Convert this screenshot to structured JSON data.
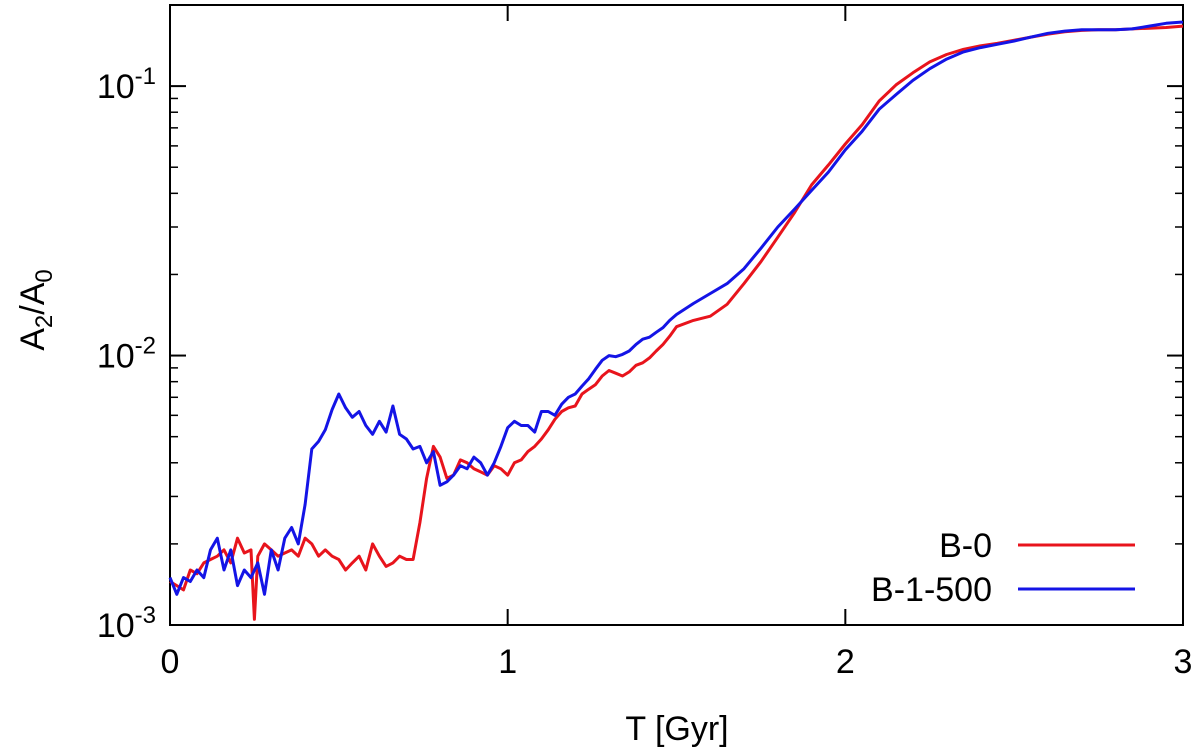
{
  "chart_data": {
    "type": "line",
    "title": "",
    "xlabel": "T [Gyr]",
    "ylabel": {
      "base": "A",
      "sub1": "2",
      "sep": "/A",
      "sub2": "0"
    },
    "xlim": [
      0,
      3
    ],
    "ylim": [
      0.001,
      0.2
    ],
    "yscale": "log",
    "grid": false,
    "legend_position": "bottom-right",
    "x_ticks": [
      {
        "value": 0,
        "label": "0"
      },
      {
        "value": 1,
        "label": "1"
      },
      {
        "value": 2,
        "label": "2"
      },
      {
        "value": 3,
        "label": "3"
      }
    ],
    "y_ticks": [
      {
        "value": 0.001,
        "base": "10",
        "exp": "-3"
      },
      {
        "value": 0.01,
        "base": "10",
        "exp": "-2"
      },
      {
        "value": 0.1,
        "base": "10",
        "exp": "-1"
      }
    ],
    "series": [
      {
        "name": "B-0",
        "color": "#e8141c",
        "x": [
          0.0,
          0.02,
          0.04,
          0.06,
          0.08,
          0.1,
          0.12,
          0.14,
          0.16,
          0.18,
          0.2,
          0.22,
          0.24,
          0.25,
          0.26,
          0.28,
          0.3,
          0.32,
          0.34,
          0.36,
          0.38,
          0.4,
          0.42,
          0.44,
          0.46,
          0.48,
          0.5,
          0.52,
          0.54,
          0.56,
          0.58,
          0.6,
          0.62,
          0.64,
          0.66,
          0.68,
          0.7,
          0.72,
          0.74,
          0.76,
          0.78,
          0.8,
          0.82,
          0.84,
          0.86,
          0.88,
          0.9,
          0.92,
          0.94,
          0.96,
          0.98,
          1.0,
          1.02,
          1.04,
          1.06,
          1.08,
          1.1,
          1.12,
          1.14,
          1.16,
          1.18,
          1.2,
          1.22,
          1.24,
          1.26,
          1.28,
          1.3,
          1.32,
          1.34,
          1.36,
          1.38,
          1.4,
          1.42,
          1.44,
          1.46,
          1.48,
          1.5,
          1.55,
          1.6,
          1.65,
          1.7,
          1.75,
          1.8,
          1.85,
          1.9,
          1.95,
          2.0,
          2.05,
          2.1,
          2.15,
          2.2,
          2.25,
          2.3,
          2.35,
          2.4,
          2.45,
          2.5,
          2.55,
          2.6,
          2.65,
          2.7,
          2.75,
          2.8,
          2.85,
          2.9,
          2.95,
          3.0
        ],
        "y": [
          0.00145,
          0.0014,
          0.00135,
          0.0016,
          0.00155,
          0.0017,
          0.00175,
          0.0018,
          0.0019,
          0.0017,
          0.0021,
          0.00185,
          0.0019,
          0.00105,
          0.0018,
          0.002,
          0.0019,
          0.0018,
          0.00185,
          0.0019,
          0.0018,
          0.0021,
          0.002,
          0.0018,
          0.0019,
          0.0018,
          0.00175,
          0.0016,
          0.0017,
          0.0018,
          0.0016,
          0.002,
          0.0018,
          0.00165,
          0.0017,
          0.0018,
          0.00175,
          0.00175,
          0.0024,
          0.0035,
          0.0046,
          0.0042,
          0.0035,
          0.0036,
          0.0041,
          0.004,
          0.0038,
          0.0037,
          0.0036,
          0.0039,
          0.0038,
          0.0036,
          0.004,
          0.0041,
          0.0044,
          0.0046,
          0.0049,
          0.0053,
          0.0058,
          0.0062,
          0.0064,
          0.0065,
          0.0072,
          0.0075,
          0.0078,
          0.0084,
          0.0088,
          0.0086,
          0.0084,
          0.0087,
          0.0092,
          0.0094,
          0.0098,
          0.0104,
          0.011,
          0.0118,
          0.0128,
          0.0135,
          0.014,
          0.0155,
          0.0185,
          0.0223,
          0.0275,
          0.034,
          0.043,
          0.051,
          0.061,
          0.072,
          0.088,
          0.101,
          0.112,
          0.123,
          0.131,
          0.137,
          0.141,
          0.144,
          0.148,
          0.152,
          0.156,
          0.159,
          0.161,
          0.162,
          0.162,
          0.163,
          0.164,
          0.165,
          0.167
        ]
      },
      {
        "name": "B-1-500",
        "color": "#1414e6",
        "x": [
          0.0,
          0.02,
          0.04,
          0.06,
          0.08,
          0.1,
          0.12,
          0.14,
          0.16,
          0.18,
          0.2,
          0.22,
          0.24,
          0.26,
          0.28,
          0.3,
          0.32,
          0.34,
          0.36,
          0.38,
          0.4,
          0.42,
          0.44,
          0.46,
          0.48,
          0.5,
          0.52,
          0.54,
          0.56,
          0.58,
          0.6,
          0.62,
          0.64,
          0.66,
          0.68,
          0.7,
          0.72,
          0.74,
          0.76,
          0.78,
          0.8,
          0.82,
          0.84,
          0.86,
          0.88,
          0.9,
          0.92,
          0.94,
          0.96,
          0.98,
          1.0,
          1.02,
          1.04,
          1.06,
          1.08,
          1.1,
          1.12,
          1.14,
          1.16,
          1.18,
          1.2,
          1.22,
          1.24,
          1.26,
          1.28,
          1.3,
          1.32,
          1.34,
          1.36,
          1.38,
          1.4,
          1.42,
          1.44,
          1.46,
          1.48,
          1.5,
          1.55,
          1.6,
          1.65,
          1.7,
          1.75,
          1.8,
          1.85,
          1.9,
          1.95,
          2.0,
          2.05,
          2.1,
          2.15,
          2.2,
          2.25,
          2.3,
          2.35,
          2.4,
          2.45,
          2.5,
          2.55,
          2.6,
          2.65,
          2.7,
          2.75,
          2.8,
          2.85,
          2.9,
          2.95,
          3.0
        ],
        "y": [
          0.0015,
          0.0013,
          0.0015,
          0.00145,
          0.0016,
          0.0015,
          0.0019,
          0.0021,
          0.0016,
          0.0019,
          0.0014,
          0.0016,
          0.0015,
          0.0017,
          0.0013,
          0.0019,
          0.0016,
          0.0021,
          0.0023,
          0.002,
          0.0028,
          0.0045,
          0.0048,
          0.0053,
          0.0063,
          0.0072,
          0.0064,
          0.0059,
          0.0062,
          0.0055,
          0.0051,
          0.0057,
          0.0052,
          0.0065,
          0.0051,
          0.0049,
          0.0045,
          0.0046,
          0.004,
          0.0044,
          0.0033,
          0.0034,
          0.0036,
          0.0039,
          0.0038,
          0.0042,
          0.004,
          0.0036,
          0.004,
          0.0046,
          0.0054,
          0.0057,
          0.0055,
          0.0055,
          0.0052,
          0.0062,
          0.0062,
          0.006,
          0.0066,
          0.007,
          0.0072,
          0.0077,
          0.0082,
          0.0089,
          0.0096,
          0.01,
          0.0099,
          0.0101,
          0.0104,
          0.011,
          0.0115,
          0.0117,
          0.0122,
          0.0127,
          0.0135,
          0.0142,
          0.0156,
          0.017,
          0.0185,
          0.021,
          0.025,
          0.03,
          0.035,
          0.041,
          0.048,
          0.058,
          0.068,
          0.082,
          0.093,
          0.105,
          0.116,
          0.126,
          0.134,
          0.139,
          0.143,
          0.147,
          0.152,
          0.157,
          0.16,
          0.162,
          0.162,
          0.162,
          0.163,
          0.167,
          0.171,
          0.173
        ]
      }
    ]
  }
}
